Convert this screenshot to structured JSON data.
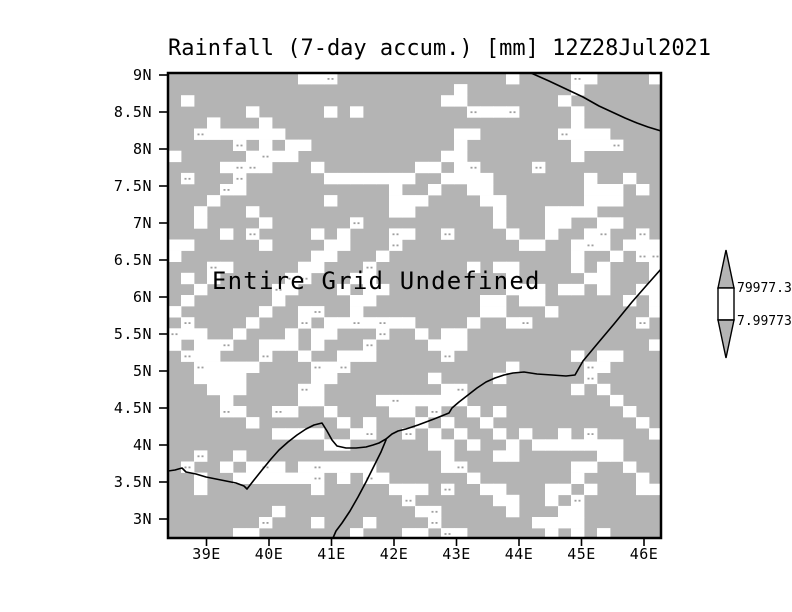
{
  "title": "Rainfall (7-day accum.) [mm] 12Z28Jul2021",
  "map": {
    "undefined_label": "Entire Grid Undefined",
    "y_ticks": [
      "9N",
      "8.5N",
      "8N",
      "7.5N",
      "7N",
      "6.5N",
      "6N",
      "5.5N",
      "5N",
      "4.5N",
      "4N",
      "3.5N",
      "3N"
    ],
    "x_ticks": [
      "39E",
      "40E",
      "41E",
      "42E",
      "43E",
      "44E",
      "45E",
      "46E"
    ]
  },
  "colorbar": {
    "upper_value": "79977.3",
    "lower_value": "7.99773"
  },
  "colors": {
    "background": "#ffffff",
    "undefined_gray": "#b4b4b4",
    "speckle_white": "#ffffff",
    "line_black": "#000000"
  },
  "chart_data": {
    "type": "heatmap",
    "title": "Rainfall (7-day accum.) [mm] 12Z28Jul2021",
    "variable": "Rainfall",
    "accumulation": "7-day accum.",
    "units": "mm",
    "valid_datetime": "12Z28Jul2021",
    "x_axis": {
      "label": "longitude",
      "tick_labels": [
        "39E",
        "40E",
        "41E",
        "42E",
        "43E",
        "44E",
        "45E",
        "46E"
      ],
      "range_deg_east": [
        38.4,
        46.3
      ]
    },
    "y_axis": {
      "label": "latitude",
      "tick_labels": [
        "9N",
        "8.5N",
        "8N",
        "7.5N",
        "7N",
        "6.5N",
        "6N",
        "5.5N",
        "5N",
        "4.5N",
        "4N",
        "3.5N",
        "3N"
      ],
      "range_deg_north": [
        2.75,
        9.0
      ]
    },
    "values": null,
    "status_annotation": "Entire Grid Undefined",
    "colorbar": {
      "style": "vertical-arrow-range",
      "upper_level": 79977.3,
      "lower_level": 7.99773,
      "fill_between": "#ffffff",
      "fill_outside": "#b4b4b4"
    },
    "grid": false,
    "legend_position": "right",
    "overlays": [
      "coastline"
    ]
  }
}
